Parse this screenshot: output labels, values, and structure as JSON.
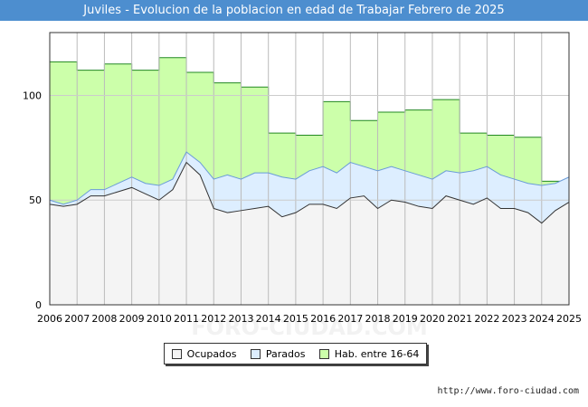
{
  "header": {
    "title": "Juviles - Evolucion de la poblacion en edad de Trabajar Febrero de 2025"
  },
  "footer": {
    "url": "http://www.foro-ciudad.com"
  },
  "watermark": "FORO-CIUDAD.COM",
  "colors": {
    "title_bg": "#4d8ecf",
    "ocupados_fill": "#f4f4f4",
    "parados_fill": "#ddeeff",
    "hab_fill": "#ccffaa",
    "hab_line": "#228822",
    "line_dark": "#333333",
    "line_blue": "#6a9bd8"
  },
  "chart_data": {
    "type": "area",
    "title": "Juviles - Evolucion de la poblacion en edad de Trabajar Febrero de 2025",
    "xlabel": "",
    "ylabel": "",
    "xlim": [
      2006,
      2025
    ],
    "ylim": [
      0,
      130
    ],
    "yticks": [
      0,
      50,
      100
    ],
    "xticks": [
      "2006",
      "2007",
      "2008",
      "2009",
      "2010",
      "2011",
      "2012",
      "2013",
      "2014",
      "2015",
      "2016",
      "2017",
      "2018",
      "2019",
      "2020",
      "2021",
      "2022",
      "2023",
      "2024",
      "2025"
    ],
    "grid": true,
    "legend_position": "bottom-center",
    "legend": [
      "Ocupados",
      "Parados",
      "Hab. entre 16-64"
    ],
    "series": [
      {
        "name": "Hab. entre 16-64",
        "x": [
          2006,
          2007,
          2008,
          2009,
          2010,
          2011,
          2012,
          2013,
          2014,
          2015,
          2016,
          2017,
          2018,
          2019,
          2020,
          2021,
          2022,
          2023,
          2024
        ],
        "values": [
          116,
          112,
          115,
          112,
          118,
          111,
          106,
          104,
          82,
          81,
          97,
          88,
          92,
          93,
          98,
          82,
          81,
          80,
          59
        ]
      },
      {
        "name": "Parados",
        "x": [
          2006,
          2006.5,
          2007,
          2007.5,
          2008,
          2008.5,
          2009,
          2009.5,
          2010,
          2010.5,
          2011,
          2011.5,
          2012,
          2012.5,
          2013,
          2013.5,
          2014,
          2014.5,
          2015,
          2015.5,
          2016,
          2016.5,
          2017,
          2017.5,
          2018,
          2018.5,
          2019,
          2019.5,
          2020,
          2020.5,
          2021,
          2021.5,
          2022,
          2022.5,
          2023,
          2023.5,
          2024,
          2024.5,
          2025
        ],
        "values": [
          50,
          48,
          50,
          55,
          55,
          58,
          61,
          58,
          57,
          60,
          73,
          68,
          60,
          62,
          60,
          63,
          63,
          61,
          60,
          64,
          66,
          63,
          68,
          66,
          64,
          66,
          64,
          62,
          60,
          64,
          63,
          64,
          66,
          62,
          60,
          58,
          57,
          58,
          61
        ]
      },
      {
        "name": "Ocupados",
        "x": [
          2006,
          2006.5,
          2007,
          2007.5,
          2008,
          2008.5,
          2009,
          2009.5,
          2010,
          2010.5,
          2011,
          2011.5,
          2012,
          2012.5,
          2013,
          2013.5,
          2014,
          2014.5,
          2015,
          2015.5,
          2016,
          2016.5,
          2017,
          2017.5,
          2018,
          2018.5,
          2019,
          2019.5,
          2020,
          2020.5,
          2021,
          2021.5,
          2022,
          2022.5,
          2023,
          2023.5,
          2024,
          2024.5,
          2025
        ],
        "values": [
          48,
          47,
          48,
          52,
          52,
          54,
          56,
          53,
          50,
          55,
          68,
          62,
          46,
          44,
          45,
          46,
          47,
          42,
          44,
          48,
          48,
          46,
          51,
          52,
          46,
          50,
          49,
          47,
          46,
          52,
          50,
          48,
          51,
          46,
          46,
          44,
          39,
          45,
          49
        ]
      }
    ]
  }
}
